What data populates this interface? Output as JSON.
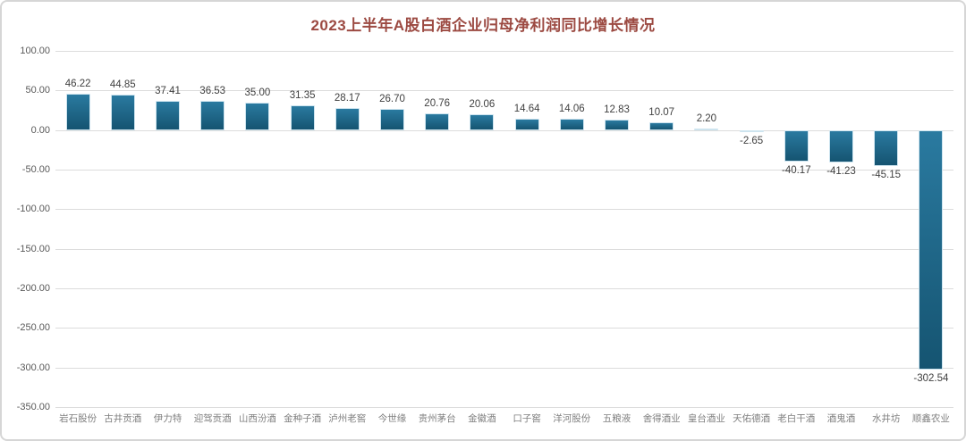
{
  "page": {
    "background": "#ffffff",
    "frame_border_color": "#d6d6d6"
  },
  "chart_data": {
    "type": "bar",
    "title": "2023上半年A股白酒企业归母净利润同比增长情况",
    "title_color": "#9c4a42",
    "xlabel": "",
    "ylabel": "",
    "ylim": [
      -350,
      100
    ],
    "ytick_step": 50,
    "yticks": [
      "100.00",
      "50.00",
      "0.00",
      "-50.00",
      "-100.00",
      "-150.00",
      "-200.00",
      "-250.00",
      "-300.00",
      "-350.00"
    ],
    "grid": true,
    "grid_color": "#dcdcdc",
    "axis_tick_color": "#595959",
    "value_label_color": "#404040",
    "category_label_color": "#7f7f7f",
    "bar_color_top": "#2a7aa0",
    "bar_color_bottom": "#155471",
    "bar_edge_color": "#cde4ef",
    "legend_position": "none",
    "categories": [
      "岩石股份",
      "古井贡酒",
      "伊力特",
      "迎驾贡酒",
      "山西汾酒",
      "金种子酒",
      "泸州老窖",
      "今世缘",
      "贵州茅台",
      "金徽酒",
      "口子窖",
      "洋河股份",
      "五粮液",
      "舍得酒业",
      "皇台酒业",
      "天佑德酒",
      "老白干酒",
      "酒鬼酒",
      "水井坊",
      "顺鑫农业"
    ],
    "values": [
      46.22,
      44.85,
      37.41,
      36.53,
      35.0,
      31.35,
      28.17,
      26.7,
      20.76,
      20.06,
      14.64,
      14.06,
      12.83,
      10.07,
      2.2,
      -2.65,
      -40.17,
      -41.23,
      -45.15,
      -302.54
    ],
    "value_labels": [
      "46.22",
      "44.85",
      "37.41",
      "36.53",
      "35.00",
      "31.35",
      "28.17",
      "26.70",
      "20.76",
      "20.06",
      "14.64",
      "14.06",
      "12.83",
      "10.07",
      "2.20",
      "-2.65",
      "-40.17",
      "-41.23",
      "-45.15",
      "-302.54"
    ]
  }
}
